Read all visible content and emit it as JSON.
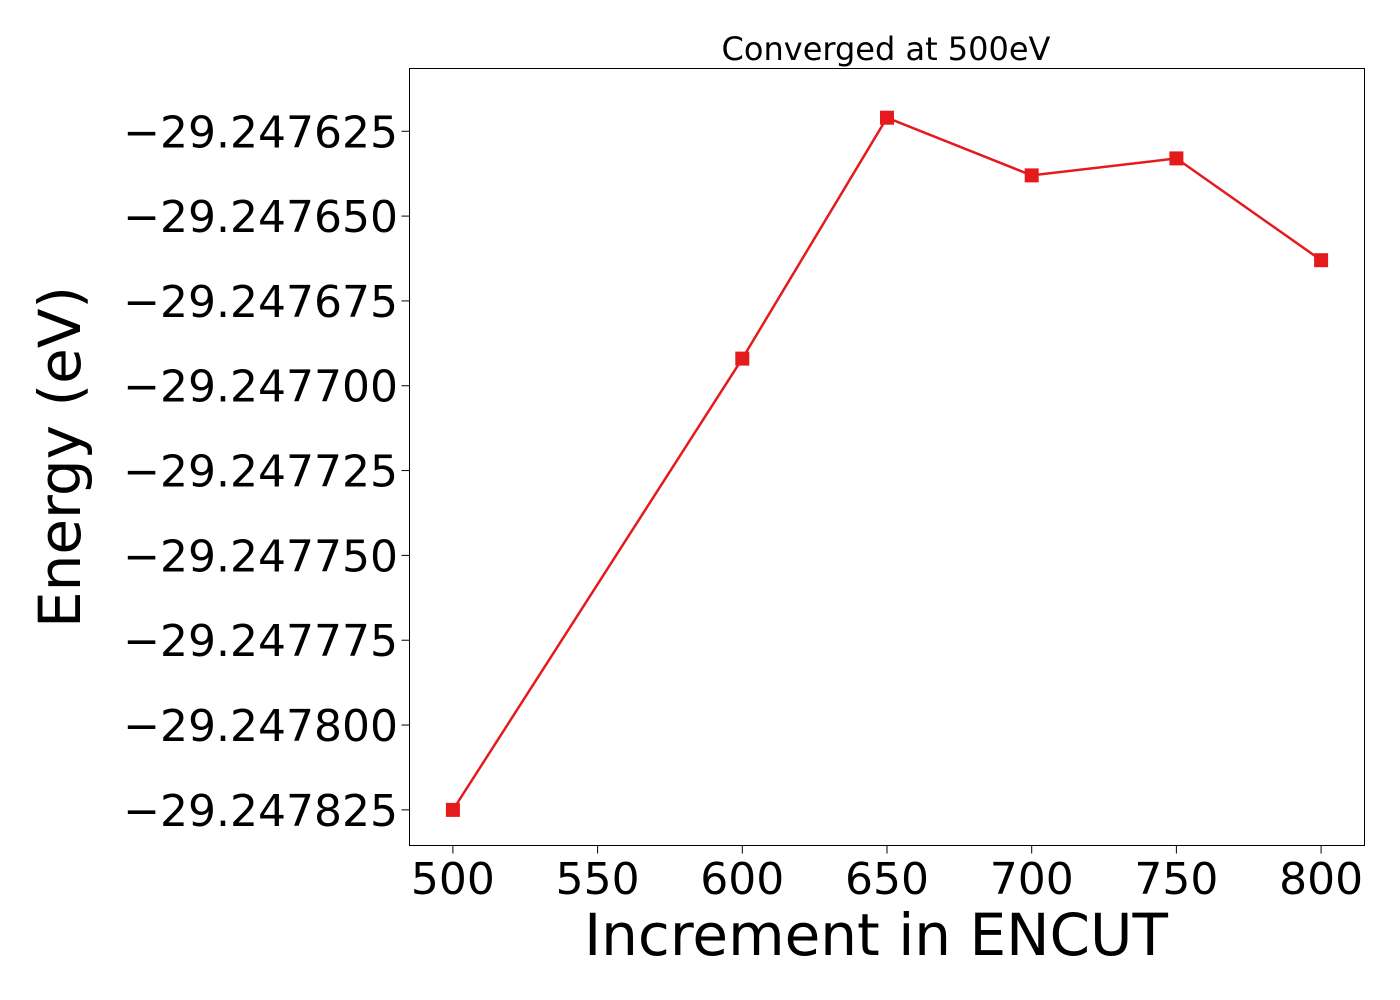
{
  "chart_data": {
    "type": "line",
    "title": "Converged at 500eV",
    "xlabel": "Increment in ENCUT",
    "ylabel": "Energy (eV)",
    "x": [
      500,
      600,
      650,
      700,
      750,
      800
    ],
    "series": [
      {
        "values": [
          -29.247825,
          -29.247692,
          -29.247621,
          -29.247638,
          -29.247633,
          -29.247663
        ],
        "color": "#e41a1c",
        "marker": "square"
      }
    ],
    "xlim": [
      485,
      815
    ],
    "ylim": [
      -29.2478355,
      -29.2476065
    ],
    "xticks": [
      500,
      550,
      600,
      650,
      700,
      750,
      800
    ],
    "xtick_labels": [
      "500",
      "550",
      "600",
      "650",
      "700",
      "750",
      "800"
    ],
    "yticks": [
      -29.247625,
      -29.24765,
      -29.247675,
      -29.2477,
      -29.247725,
      -29.24775,
      -29.247775,
      -29.2478,
      -29.247825
    ],
    "ytick_labels": [
      "−29.247625",
      "−29.247650",
      "−29.247675",
      "−29.247700",
      "−29.247725",
      "−29.247750",
      "−29.247775",
      "−29.247800",
      "−29.247825"
    ],
    "grid": false,
    "legend": "none"
  }
}
